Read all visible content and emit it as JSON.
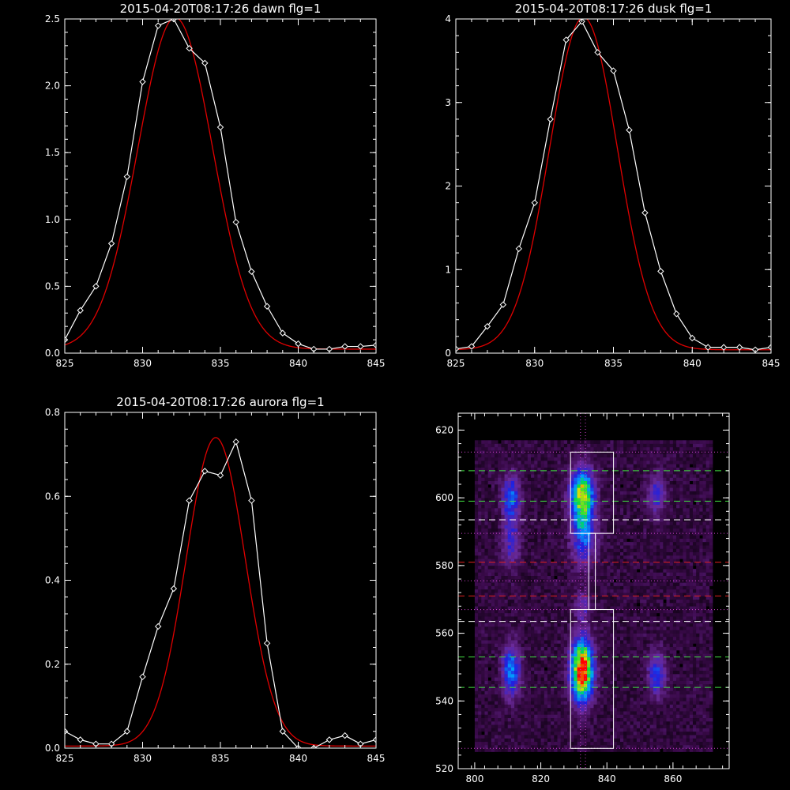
{
  "chart_data": [
    {
      "id": "dawn",
      "type": "line",
      "title": "2015-04-20T08:17:26 dawn flg=1",
      "xlim": [
        825,
        845
      ],
      "ylim": [
        0,
        2.5
      ],
      "xticks": [
        "825",
        "830",
        "835",
        "840",
        "845"
      ],
      "yticks": [
        "0.0",
        "0.5",
        "1.0",
        "1.5",
        "2.0",
        "2.5"
      ],
      "series": [
        {
          "kind": "measured",
          "color": "#ffffff",
          "marker": "diamond",
          "x": [
            825,
            826,
            827,
            828,
            829,
            830,
            831,
            832,
            833,
            834,
            835,
            836,
            837,
            838,
            839,
            840,
            841,
            842,
            843,
            844,
            845
          ],
          "y": [
            0.1,
            0.32,
            0.5,
            0.82,
            1.32,
            2.03,
            2.45,
            2.5,
            2.28,
            2.17,
            1.69,
            0.98,
            0.61,
            0.35,
            0.15,
            0.07,
            0.03,
            0.03,
            0.05,
            0.05,
            0.06
          ]
        },
        {
          "kind": "fit",
          "color": "#e00000",
          "model": "gaussian",
          "amplitude": 2.48,
          "center": 832.1,
          "sigma": 2.4,
          "offset": 0.03
        }
      ]
    },
    {
      "id": "dusk",
      "type": "line",
      "title": "2015-04-20T08:17:26 dusk flg=1",
      "xlim": [
        825,
        845
      ],
      "ylim": [
        0,
        4
      ],
      "xticks": [
        "825",
        "830",
        "835",
        "840",
        "845"
      ],
      "yticks": [
        "0",
        "1",
        "2",
        "3",
        "4"
      ],
      "series": [
        {
          "kind": "measured",
          "color": "#ffffff",
          "marker": "diamond",
          "x": [
            825,
            826,
            827,
            828,
            829,
            830,
            831,
            832,
            833,
            834,
            835,
            836,
            837,
            838,
            839,
            840,
            841,
            842,
            843,
            844,
            845
          ],
          "y": [
            0.05,
            0.08,
            0.32,
            0.58,
            1.25,
            1.8,
            2.8,
            3.75,
            3.97,
            3.6,
            3.38,
            2.67,
            1.68,
            0.98,
            0.47,
            0.18,
            0.07,
            0.07,
            0.07,
            0.04,
            0.07
          ]
        },
        {
          "kind": "fit",
          "color": "#e00000",
          "model": "gaussian",
          "amplitude": 3.98,
          "center": 833.1,
          "sigma": 2.15,
          "offset": 0.04
        }
      ]
    },
    {
      "id": "aurora",
      "type": "line",
      "title": "2015-04-20T08:17:26 aurora flg=1",
      "xlim": [
        825,
        845
      ],
      "ylim": [
        0,
        0.8
      ],
      "xticks": [
        "825",
        "830",
        "835",
        "840",
        "845"
      ],
      "yticks": [
        "0.0",
        "0.2",
        "0.4",
        "0.6",
        "0.8"
      ],
      "series": [
        {
          "kind": "measured",
          "color": "#ffffff",
          "marker": "diamond",
          "x": [
            825,
            826,
            827,
            828,
            829,
            830,
            831,
            832,
            833,
            834,
            835,
            836,
            837,
            838,
            839,
            840,
            841,
            842,
            843,
            844,
            845
          ],
          "y": [
            0.04,
            0.02,
            0.01,
            0.01,
            0.04,
            0.17,
            0.29,
            0.38,
            0.59,
            0.66,
            0.65,
            0.73,
            0.59,
            0.25,
            0.04,
            0.0,
            0.0,
            0.02,
            0.03,
            0.01,
            0.02
          ]
        },
        {
          "kind": "fit",
          "color": "#e00000",
          "model": "gaussian",
          "amplitude": 0.735,
          "center": 834.7,
          "sigma": 1.9,
          "offset": 0.005
        }
      ]
    },
    {
      "id": "image",
      "type": "heatmap",
      "title": "",
      "xlim": [
        795,
        877
      ],
      "ylim": [
        520,
        625
      ],
      "xticks": [
        "800",
        "820",
        "840",
        "860"
      ],
      "yticks": [
        "520",
        "540",
        "560",
        "580",
        "600",
        "620"
      ],
      "colormap": [
        "#000000",
        "#3a0a4a",
        "#6a2a9a",
        "#2020e0",
        "#00a0ff",
        "#00e040",
        "#e0e000",
        "#ff0000"
      ],
      "blobs": [
        {
          "x": 832.5,
          "y": 549,
          "sx": 2.2,
          "sy": 6,
          "amp": 1.0
        },
        {
          "x": 832.5,
          "y": 601,
          "sx": 2.4,
          "sy": 5,
          "amp": 0.72
        },
        {
          "x": 833,
          "y": 589,
          "sx": 2.5,
          "sy": 6,
          "amp": 0.35
        },
        {
          "x": 811,
          "y": 549,
          "sx": 1.8,
          "sy": 5,
          "amp": 0.42
        },
        {
          "x": 811,
          "y": 600,
          "sx": 1.8,
          "sy": 4.5,
          "amp": 0.34
        },
        {
          "x": 811,
          "y": 587,
          "sx": 1.8,
          "sy": 5,
          "amp": 0.22
        },
        {
          "x": 855,
          "y": 548,
          "sx": 1.8,
          "sy": 4.5,
          "amp": 0.3
        },
        {
          "x": 855,
          "y": 601,
          "sx": 1.8,
          "sy": 4,
          "amp": 0.25
        },
        {
          "x": 832.5,
          "y": 568,
          "sx": 1.5,
          "sy": 3,
          "amp": 0.18
        }
      ],
      "background": 0.08,
      "hlines": [
        {
          "y": 613.5,
          "color": "#d040d0",
          "style": "dotted"
        },
        {
          "y": 608,
          "color": "#40e040",
          "style": "dashed"
        },
        {
          "y": 599,
          "color": "#40e040",
          "style": "dashed"
        },
        {
          "y": 593.5,
          "color": "#ffffff",
          "style": "dashed"
        },
        {
          "y": 589.5,
          "color": "#d040d0",
          "style": "dotted"
        },
        {
          "y": 581,
          "color": "#e02020",
          "style": "dashed"
        },
        {
          "y": 575.5,
          "color": "#d040d0",
          "style": "dotted"
        },
        {
          "y": 571,
          "color": "#e02020",
          "style": "dashed"
        },
        {
          "y": 567,
          "color": "#d040d0",
          "style": "dotted"
        },
        {
          "y": 563.5,
          "color": "#ffffff",
          "style": "dashed"
        },
        {
          "y": 553,
          "color": "#40e040",
          "style": "dashed"
        },
        {
          "y": 544,
          "color": "#40e040",
          "style": "dashed"
        },
        {
          "y": 526,
          "color": "#d040d0",
          "style": "dotted"
        }
      ],
      "vlines": [
        {
          "x": 832,
          "color": "#d040d0",
          "style": "dotted"
        },
        {
          "x": 833.5,
          "color": "#d040d0",
          "style": "dotted"
        }
      ],
      "boxes": [
        {
          "x0": 829,
          "x1": 842,
          "y0": 589.5,
          "y1": 613.5
        },
        {
          "x0": 829,
          "x1": 842,
          "y0": 526,
          "y1": 567
        },
        {
          "x0": 834.5,
          "x1": 836.5,
          "y0": 567,
          "y1": 589.5
        }
      ]
    }
  ]
}
